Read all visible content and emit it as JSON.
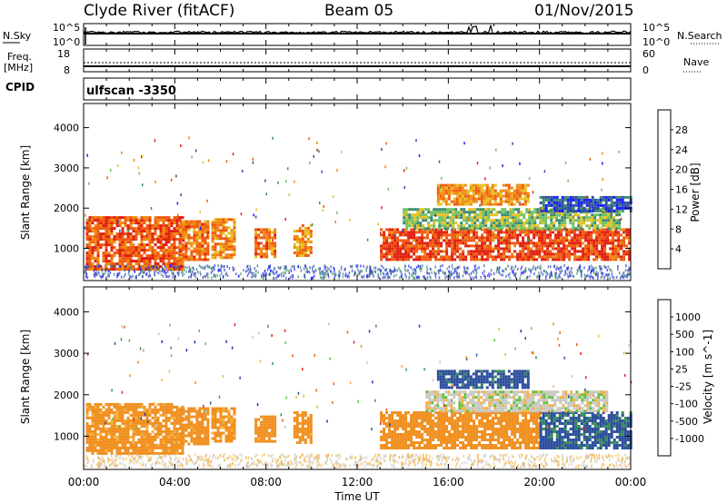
{
  "header": {
    "station": "Clyde River (fitACF)",
    "beam": "Beam 05",
    "date": "01/Nov/2015"
  },
  "nsky_panel": {
    "left_label": "N.Sky",
    "right_label": "N.Search",
    "left_ticks": [
      "10^5",
      "10^0"
    ],
    "right_ticks": [
      "10^5",
      "10^0"
    ]
  },
  "freq_panel": {
    "left_label_1": "Freq.",
    "left_label_2": "[MHz]",
    "right_label": "Nave",
    "left_ticks": [
      "18",
      "8"
    ],
    "right_ticks": [
      "60",
      "0"
    ]
  },
  "cpid": {
    "label": "CPID",
    "mode": "ulfscan  -3350"
  },
  "x_axis": {
    "label": "Time UT",
    "ticks": [
      "00:00",
      "04:00",
      "08:00",
      "12:00",
      "16:00",
      "20:00",
      "00:00"
    ]
  },
  "colors": {
    "power_scale": [
      "#1a1aff",
      "#2f4fa0",
      "#3c8a6e",
      "#70c060",
      "#e6c020",
      "#f08a10",
      "#f05a10",
      "#e02010"
    ],
    "velocity_scale": [
      "#e82020",
      "#f06010",
      "#f09020",
      "#f5b040",
      "#c8c8c0",
      "#60c040",
      "#3a8a60",
      "#2c4e9c",
      "#2030b0"
    ]
  },
  "chart_data": [
    {
      "type": "heatmap",
      "panel": "power",
      "ylabel": "Slant Range [km]",
      "xlabel": "",
      "yticks": [
        "1000",
        "2000",
        "3000",
        "4000"
      ],
      "ylim": [
        200,
        4600
      ],
      "xlim": [
        0,
        24
      ],
      "colorbar_label": "Power [dB]",
      "colorbar_ticks": [
        "4",
        "8",
        "12",
        "16",
        "20",
        "24",
        "28"
      ],
      "colorbar_range": [
        0,
        32
      ],
      "features": [
        {
          "t0": 0.1,
          "t1": 4.4,
          "r0": 500,
          "r1": 1800,
          "value": 26
        },
        {
          "t0": 4.2,
          "t1": 5.5,
          "r0": 750,
          "r1": 1700,
          "value": 24
        },
        {
          "t0": 5.6,
          "t1": 6.6,
          "r0": 800,
          "r1": 1750,
          "value": 22
        },
        {
          "t0": 7.5,
          "t1": 8.4,
          "r0": 800,
          "r1": 1500,
          "value": 24
        },
        {
          "t0": 9.2,
          "t1": 10.0,
          "r0": 800,
          "r1": 1600,
          "value": 22
        },
        {
          "t0": 13.0,
          "t1": 24.0,
          "r0": 700,
          "r1": 1500,
          "value": 28
        },
        {
          "t0": 15.5,
          "t1": 19.5,
          "r0": 2100,
          "r1": 2600,
          "value": 22
        },
        {
          "t0": 14.0,
          "t1": 23.5,
          "r0": 1500,
          "r1": 2000,
          "value": 14
        },
        {
          "t0": 20.0,
          "t1": 24.0,
          "r0": 1900,
          "r1": 2300,
          "value": 6
        }
      ]
    },
    {
      "type": "heatmap",
      "panel": "velocity",
      "ylabel": "Slant Range [km]",
      "xlabel": "Time UT",
      "yticks": [
        "1000",
        "2000",
        "3000",
        "4000"
      ],
      "ylim": [
        200,
        4600
      ],
      "xlim": [
        0,
        24
      ],
      "colorbar_label": "Velocity [m s^-1]",
      "colorbar_ticks": [
        "1000",
        "500",
        "100",
        "25",
        "-25",
        "-100",
        "-500",
        "-1000"
      ],
      "features": [
        {
          "t0": 0.1,
          "t1": 4.4,
          "r0": 600,
          "r1": 1800,
          "value": -150
        },
        {
          "t0": 4.2,
          "t1": 5.5,
          "r0": 800,
          "r1": 1700,
          "value": -200
        },
        {
          "t0": 5.6,
          "t1": 6.6,
          "r0": 850,
          "r1": 1700,
          "value": -150
        },
        {
          "t0": 7.5,
          "t1": 8.4,
          "r0": 850,
          "r1": 1500,
          "value": -200
        },
        {
          "t0": 9.2,
          "t1": 10.0,
          "r0": 850,
          "r1": 1600,
          "value": -200
        },
        {
          "t0": 13.0,
          "t1": 20.0,
          "r0": 700,
          "r1": 1600,
          "value": -250
        },
        {
          "t0": 20.0,
          "t1": 24.0,
          "r0": 700,
          "r1": 1600,
          "value": 600
        },
        {
          "t0": 15.5,
          "t1": 19.5,
          "r0": 2200,
          "r1": 2600,
          "value": 700
        },
        {
          "t0": 15.0,
          "t1": 23.0,
          "r0": 1600,
          "r1": 2100,
          "value": 0
        }
      ]
    }
  ]
}
